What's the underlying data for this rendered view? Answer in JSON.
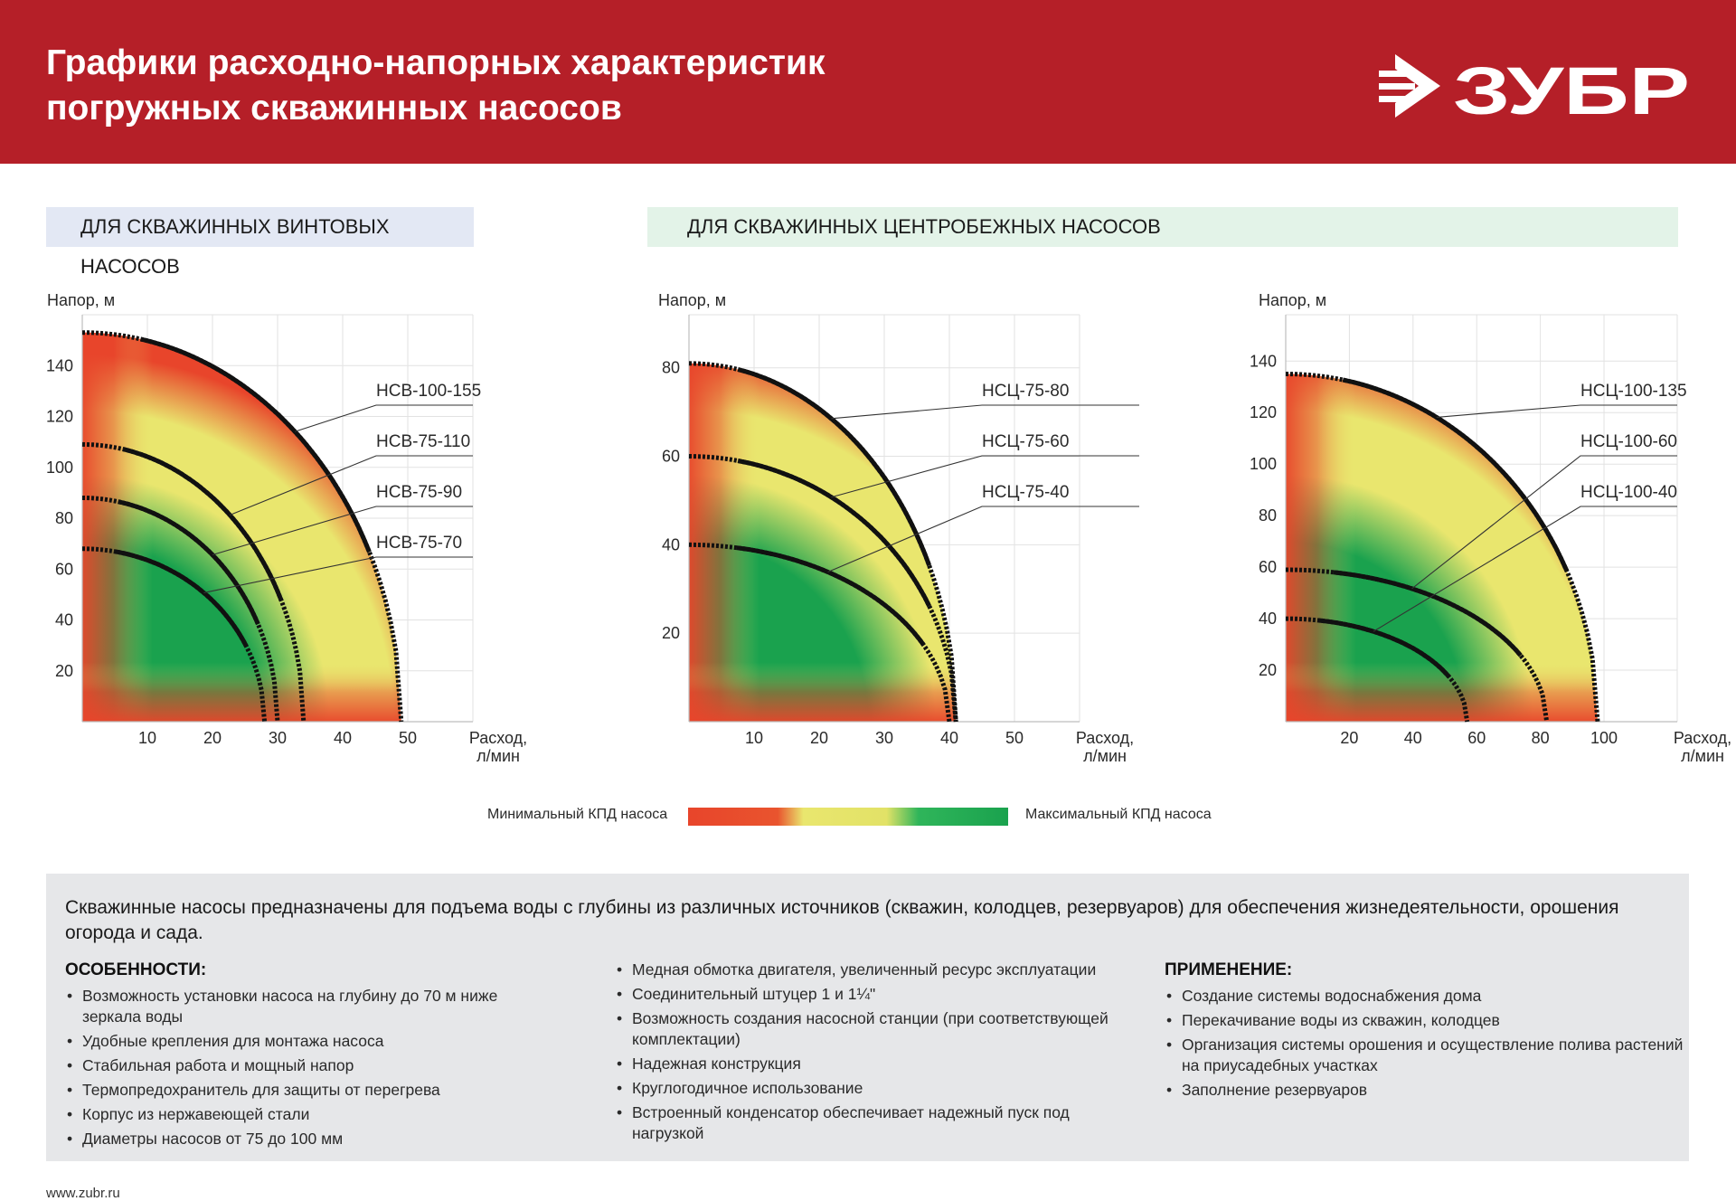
{
  "header": {
    "title_line1": "Графики расходно-напорных характеристик",
    "title_line2": "погружных скважинных насосов",
    "brand": "ЗУБР"
  },
  "sections": {
    "screw_label": "ДЛЯ СКВАЖИННЫХ ВИНТОВЫХ НАСОСОВ",
    "centrifugal_label": "ДЛЯ СКВАЖИННЫХ ЦЕНТРОБЕЖНЫХ НАСОСОВ"
  },
  "colors": {
    "header_red": "#b51f28",
    "screw_label_bg": "#e3e8f4",
    "centrifugal_label_bg": "#e3f3e8",
    "eff_low": "#e8452b",
    "eff_mid": "#e9e66e",
    "eff_high": "#1aa24e"
  },
  "chart_data": [
    {
      "type": "line",
      "title": "ДЛЯ СКВАЖИННЫХ ВИНТОВЫХ НАСОСОВ",
      "ylabel": "Напор, м",
      "xlabel_line1": "Расход,",
      "xlabel_line2": "л/мин",
      "xlim": [
        0,
        60
      ],
      "ylim": [
        0,
        160
      ],
      "xticks": [
        10,
        20,
        30,
        40,
        50
      ],
      "yticks": [
        20,
        40,
        60,
        80,
        100,
        120,
        140
      ],
      "series": [
        {
          "name": "НСВ-100-155",
          "shutoff": 153,
          "max_flow": 49
        },
        {
          "name": "НСВ-75-110",
          "shutoff": 109,
          "max_flow": 34
        },
        {
          "name": "НСВ-75-90",
          "shutoff": 88,
          "max_flow": 30
        },
        {
          "name": "НСВ-75-70",
          "shutoff": 68,
          "max_flow": 28
        }
      ]
    },
    {
      "type": "line",
      "title": "ДЛЯ СКВАЖИННЫХ ЦЕНТРОБЕЖНЫХ НАСОСОВ",
      "ylabel": "Напор, м",
      "xlabel_line1": "Расход,",
      "xlabel_line2": "л/мин",
      "xlim": [
        0,
        60
      ],
      "ylim": [
        0,
        92
      ],
      "xticks": [
        10,
        20,
        30,
        40,
        50
      ],
      "yticks": [
        20,
        40,
        60,
        80
      ],
      "series": [
        {
          "name": "НСЦ-75-80",
          "shutoff": 81,
          "max_flow": 41
        },
        {
          "name": "НСЦ-75-60",
          "shutoff": 60,
          "max_flow": 41
        },
        {
          "name": "НСЦ-75-40",
          "shutoff": 40,
          "max_flow": 40
        }
      ]
    },
    {
      "type": "line",
      "title": "ДЛЯ СКВАЖИННЫХ ЦЕНТРОБЕЖНЫХ НАСОСОВ",
      "ylabel": "Напор, м",
      "xlabel_line1": "Расход,",
      "xlabel_line2": "л/мин",
      "xlim": [
        0,
        123
      ],
      "ylim": [
        0,
        158
      ],
      "xticks": [
        20,
        40,
        60,
        80,
        100
      ],
      "yticks": [
        20,
        40,
        60,
        80,
        100,
        120,
        140
      ],
      "series": [
        {
          "name": "НСЦ-100-135",
          "shutoff": 135,
          "max_flow": 98
        },
        {
          "name": "НСЦ-100-60",
          "shutoff": 59,
          "max_flow": 82
        },
        {
          "name": "НСЦ-100-40",
          "shutoff": 40,
          "max_flow": 57
        }
      ]
    }
  ],
  "legend": {
    "min_label": "Минимальный КПД насоса",
    "max_label": "Максимальный КПД насоса"
  },
  "info": {
    "intro": "Скважинные насосы предназначены для подъема воды с глубины из различных источников (скважин, колодцев, резервуаров) для обеспечения жизнедеятельности, орошения огорода и сада.",
    "features_title": "ОСОБЕННОСТИ:",
    "features_col1": [
      "Возможность установки насоса на глубину до 70 м ниже зеркала воды",
      "Удобные крепления для монтажа насоса",
      "Стабильная работа и мощный напор",
      "Термопредохранитель для защиты от перегрева",
      "Корпус из нержавеющей стали",
      "Диаметры насосов от 75 до 100 мм"
    ],
    "features_col2": [
      "Медная обмотка двигателя, увеличенный ресурс эксплуатации",
      "Соединительный штуцер 1 и 1¼\"",
      "Возможность создания насосной станции (при соответствующей комплектации)",
      "Надежная конструкция",
      "Круглогодичное использование",
      "Встроенный конденсатор обеспечивает надежный пуск под нагрузкой"
    ],
    "application_title": "ПРИМЕНЕНИЕ:",
    "application": [
      "Создание системы водоснабжения дома",
      "Перекачивание воды из скважин, колодцев",
      "Организация системы орошения и осуществление полива растений на приусадебных участках",
      "Заполнение резервуаров"
    ]
  },
  "footer": {
    "url": "www.zubr.ru"
  }
}
